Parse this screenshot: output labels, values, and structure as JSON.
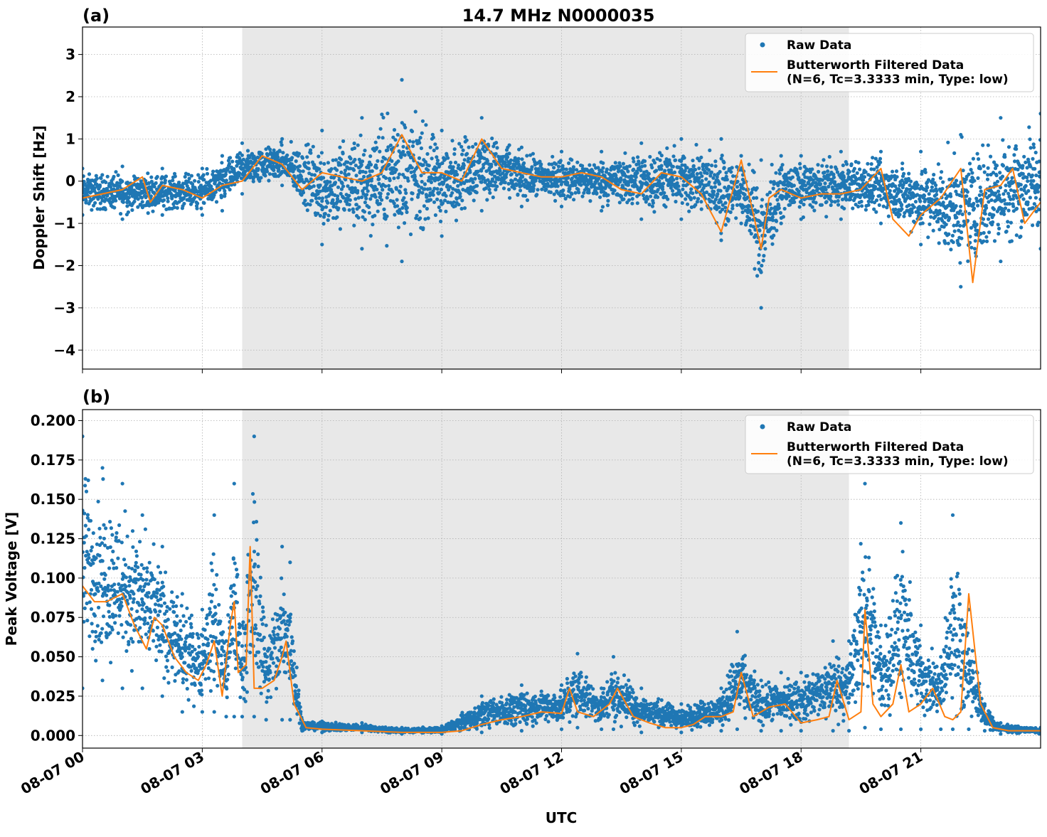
{
  "figure": {
    "suptitle": "14.7 MHz N0000035",
    "xlabel": "UTC"
  },
  "legend": {
    "raw_label": "Raw Data",
    "filtered_label_line1": "Butterworth Filtered Data",
    "filtered_label_line2": "(N=6, Tc=3.3333 min, Type: low)"
  },
  "colors": {
    "raw": "#1f77b4",
    "filtered": "#ff7f0e",
    "shade": "#e8e8e8",
    "grid": "#b0b0b0"
  },
  "chart_data": [
    {
      "panel": "(a)",
      "type": "scatter",
      "title": "14.7 MHz N0000035",
      "xlabel": "",
      "ylabel": "Doppler Shift [Hz]",
      "xlim_hours": [
        0,
        24
      ],
      "ylim": [
        -4.45,
        3.65
      ],
      "x_ticks": [
        0,
        3,
        6,
        9,
        12,
        15,
        18,
        21
      ],
      "y_ticks": [
        3,
        2,
        1,
        0,
        -1,
        -2,
        -3,
        -4
      ],
      "y_tick_labels": [
        "3",
        "2",
        "1",
        "0",
        "−1",
        "−2",
        "−3",
        "−4"
      ],
      "grid": true,
      "legend_position": "top-right",
      "shaded_interval_hours": [
        4.0,
        19.2
      ],
      "series": [
        {
          "name": "Raw Data",
          "kind": "scatter",
          "envelope": {
            "x": [
              0,
              1,
              2,
              3,
              3.5,
              4,
              5,
              6,
              7,
              8,
              9,
              10,
              11,
              12,
              13,
              14,
              15,
              16,
              16.5,
              17,
              17.5,
              18,
              19,
              20,
              21,
              22,
              23,
              24
            ],
            "low": [
              -0.8,
              -0.9,
              -0.8,
              -0.8,
              -0.7,
              -0.3,
              -0.1,
              -1.5,
              -1.6,
              -1.9,
              -1.3,
              -0.7,
              -0.6,
              -0.6,
              -0.7,
              -0.9,
              -0.9,
              -1.4,
              -1.0,
              -3.0,
              -1.0,
              -0.9,
              -0.9,
              -1.0,
              -1.5,
              -2.5,
              -1.9,
              -1.6
            ],
            "high": [
              0.3,
              0.35,
              0.3,
              0.3,
              0.6,
              0.9,
              1.0,
              1.2,
              1.5,
              2.4,
              1.2,
              1.5,
              0.8,
              0.7,
              0.7,
              0.9,
              1.0,
              1.0,
              0.6,
              0.5,
              0.6,
              0.6,
              0.7,
              0.7,
              0.7,
              1.1,
              1.5,
              1.6
            ]
          }
        },
        {
          "name": "Butterworth Filtered Data (N=6, Tc=3.3333 min, Type: low)",
          "kind": "line",
          "x": [
            0,
            0.5,
            1,
            1.5,
            1.7,
            2,
            2.5,
            3,
            3.5,
            4,
            4.5,
            5,
            5.5,
            6,
            7,
            7.5,
            8,
            8.5,
            9,
            9.5,
            10,
            10.5,
            11,
            11.5,
            12,
            12.5,
            13,
            13.5,
            14,
            14.5,
            15,
            15.5,
            16,
            16.5,
            17,
            17.2,
            17.5,
            18,
            18.5,
            19,
            19.5,
            20,
            20.3,
            20.7,
            21,
            21.5,
            22,
            22.3,
            22.6,
            23,
            23.3,
            23.6,
            24
          ],
          "y": [
            -0.4,
            -0.3,
            -0.2,
            0.1,
            -0.5,
            -0.1,
            -0.2,
            -0.4,
            -0.1,
            0.0,
            0.6,
            0.4,
            -0.2,
            0.2,
            0.0,
            0.2,
            1.1,
            0.2,
            0.2,
            0.0,
            1.0,
            0.3,
            0.2,
            0.1,
            0.1,
            0.2,
            0.1,
            -0.2,
            -0.3,
            0.2,
            0.1,
            -0.3,
            -1.2,
            0.5,
            -1.6,
            -0.4,
            -0.2,
            -0.4,
            -0.3,
            -0.3,
            -0.2,
            0.3,
            -0.9,
            -1.3,
            -0.8,
            -0.4,
            0.3,
            -2.4,
            -0.2,
            -0.1,
            0.3,
            -1.0,
            -0.5
          ]
        }
      ]
    },
    {
      "panel": "(b)",
      "type": "scatter",
      "title": "",
      "xlabel": "UTC",
      "ylabel": "Peak Voltage [V]",
      "xlim_hours": [
        0,
        24
      ],
      "ylim": [
        -0.008,
        0.207
      ],
      "x_ticks": [
        0,
        3,
        6,
        9,
        12,
        15,
        18,
        21
      ],
      "x_tick_labels": [
        "08-07 00",
        "08-07 03",
        "08-07 06",
        "08-07 09",
        "08-07 12",
        "08-07 15",
        "08-07 18",
        "08-07 21"
      ],
      "y_ticks": [
        0.2,
        0.175,
        0.15,
        0.125,
        0.1,
        0.075,
        0.05,
        0.025,
        0.0
      ],
      "y_tick_labels": [
        "0.200",
        "0.175",
        "0.150",
        "0.125",
        "0.100",
        "0.075",
        "0.050",
        "0.025",
        "0.000"
      ],
      "grid": true,
      "legend_position": "top-right",
      "shaded_interval_hours": [
        4.0,
        19.2
      ],
      "series": [
        {
          "name": "Raw Data",
          "kind": "scatter",
          "envelope": {
            "x": [
              0,
              0.5,
              1,
              1.5,
              2,
              2.5,
              3,
              3.3,
              3.6,
              3.8,
              4.0,
              4.3,
              4.6,
              5.0,
              5.2,
              5.5,
              6,
              7,
              8,
              9,
              10,
              11,
              12,
              12.4,
              13,
              13.3,
              14,
              15,
              16,
              16.4,
              17,
              17.5,
              18,
              18.8,
              19.2,
              19.6,
              20,
              20.5,
              21,
              21.5,
              21.8,
              22.2,
              22.6,
              23,
              24
            ],
            "low": [
              0.03,
              0.035,
              0.03,
              0.03,
              0.025,
              0.015,
              0.015,
              0.015,
              0.012,
              0.012,
              0.012,
              0.012,
              0.01,
              0.01,
              0.01,
              0.003,
              0.002,
              0.002,
              0.001,
              0.001,
              0.002,
              0.003,
              0.004,
              0.005,
              0.004,
              0.004,
              0.002,
              0.002,
              0.003,
              0.004,
              0.003,
              0.003,
              0.003,
              0.003,
              0.003,
              0.005,
              0.004,
              0.004,
              0.004,
              0.004,
              0.004,
              0.004,
              0.003,
              0.001,
              0.001
            ],
            "high": [
              0.19,
              0.17,
              0.16,
              0.14,
              0.12,
              0.09,
              0.08,
              0.14,
              0.06,
              0.16,
              0.07,
              0.19,
              0.07,
              0.12,
              0.11,
              0.01,
              0.009,
              0.008,
              0.005,
              0.006,
              0.025,
              0.032,
              0.032,
              0.052,
              0.03,
              0.05,
              0.03,
              0.02,
              0.03,
              0.066,
              0.035,
              0.04,
              0.04,
              0.06,
              0.06,
              0.16,
              0.07,
              0.135,
              0.07,
              0.05,
              0.14,
              0.08,
              0.02,
              0.008,
              0.005
            ]
          }
        },
        {
          "name": "Butterworth Filtered Data (N=6, Tc=3.3333 min, Type: low)",
          "kind": "line",
          "x": [
            0,
            0.3,
            0.6,
            1.0,
            1.3,
            1.6,
            1.8,
            2.0,
            2.3,
            2.6,
            2.9,
            3.1,
            3.3,
            3.5,
            3.7,
            3.8,
            3.9,
            4.1,
            4.2,
            4.3,
            4.5,
            4.8,
            5.0,
            5.1,
            5.3,
            5.6,
            6,
            7,
            8,
            9,
            9.5,
            10,
            10.5,
            11,
            11.5,
            12,
            12.2,
            12.4,
            12.8,
            13.2,
            13.4,
            13.8,
            14.2,
            14.6,
            15,
            15.3,
            15.6,
            16,
            16.3,
            16.5,
            16.8,
            17.2,
            17.6,
            18,
            18.4,
            18.7,
            18.9,
            19.2,
            19.5,
            19.6,
            19.8,
            20,
            20.3,
            20.5,
            20.7,
            21,
            21.3,
            21.6,
            21.8,
            22,
            22.2,
            22.5,
            22.8,
            23.2,
            24
          ],
          "y": [
            0.095,
            0.085,
            0.085,
            0.09,
            0.07,
            0.055,
            0.075,
            0.07,
            0.05,
            0.04,
            0.035,
            0.045,
            0.06,
            0.025,
            0.07,
            0.085,
            0.04,
            0.045,
            0.12,
            0.03,
            0.03,
            0.035,
            0.05,
            0.06,
            0.02,
            0.005,
            0.004,
            0.003,
            0.002,
            0.002,
            0.003,
            0.007,
            0.01,
            0.012,
            0.015,
            0.014,
            0.03,
            0.015,
            0.012,
            0.02,
            0.03,
            0.012,
            0.008,
            0.005,
            0.005,
            0.007,
            0.012,
            0.012,
            0.015,
            0.04,
            0.012,
            0.018,
            0.02,
            0.008,
            0.01,
            0.012,
            0.035,
            0.01,
            0.015,
            0.08,
            0.02,
            0.012,
            0.02,
            0.045,
            0.015,
            0.02,
            0.03,
            0.012,
            0.01,
            0.015,
            0.09,
            0.02,
            0.005,
            0.003,
            0.003
          ]
        }
      ]
    }
  ]
}
